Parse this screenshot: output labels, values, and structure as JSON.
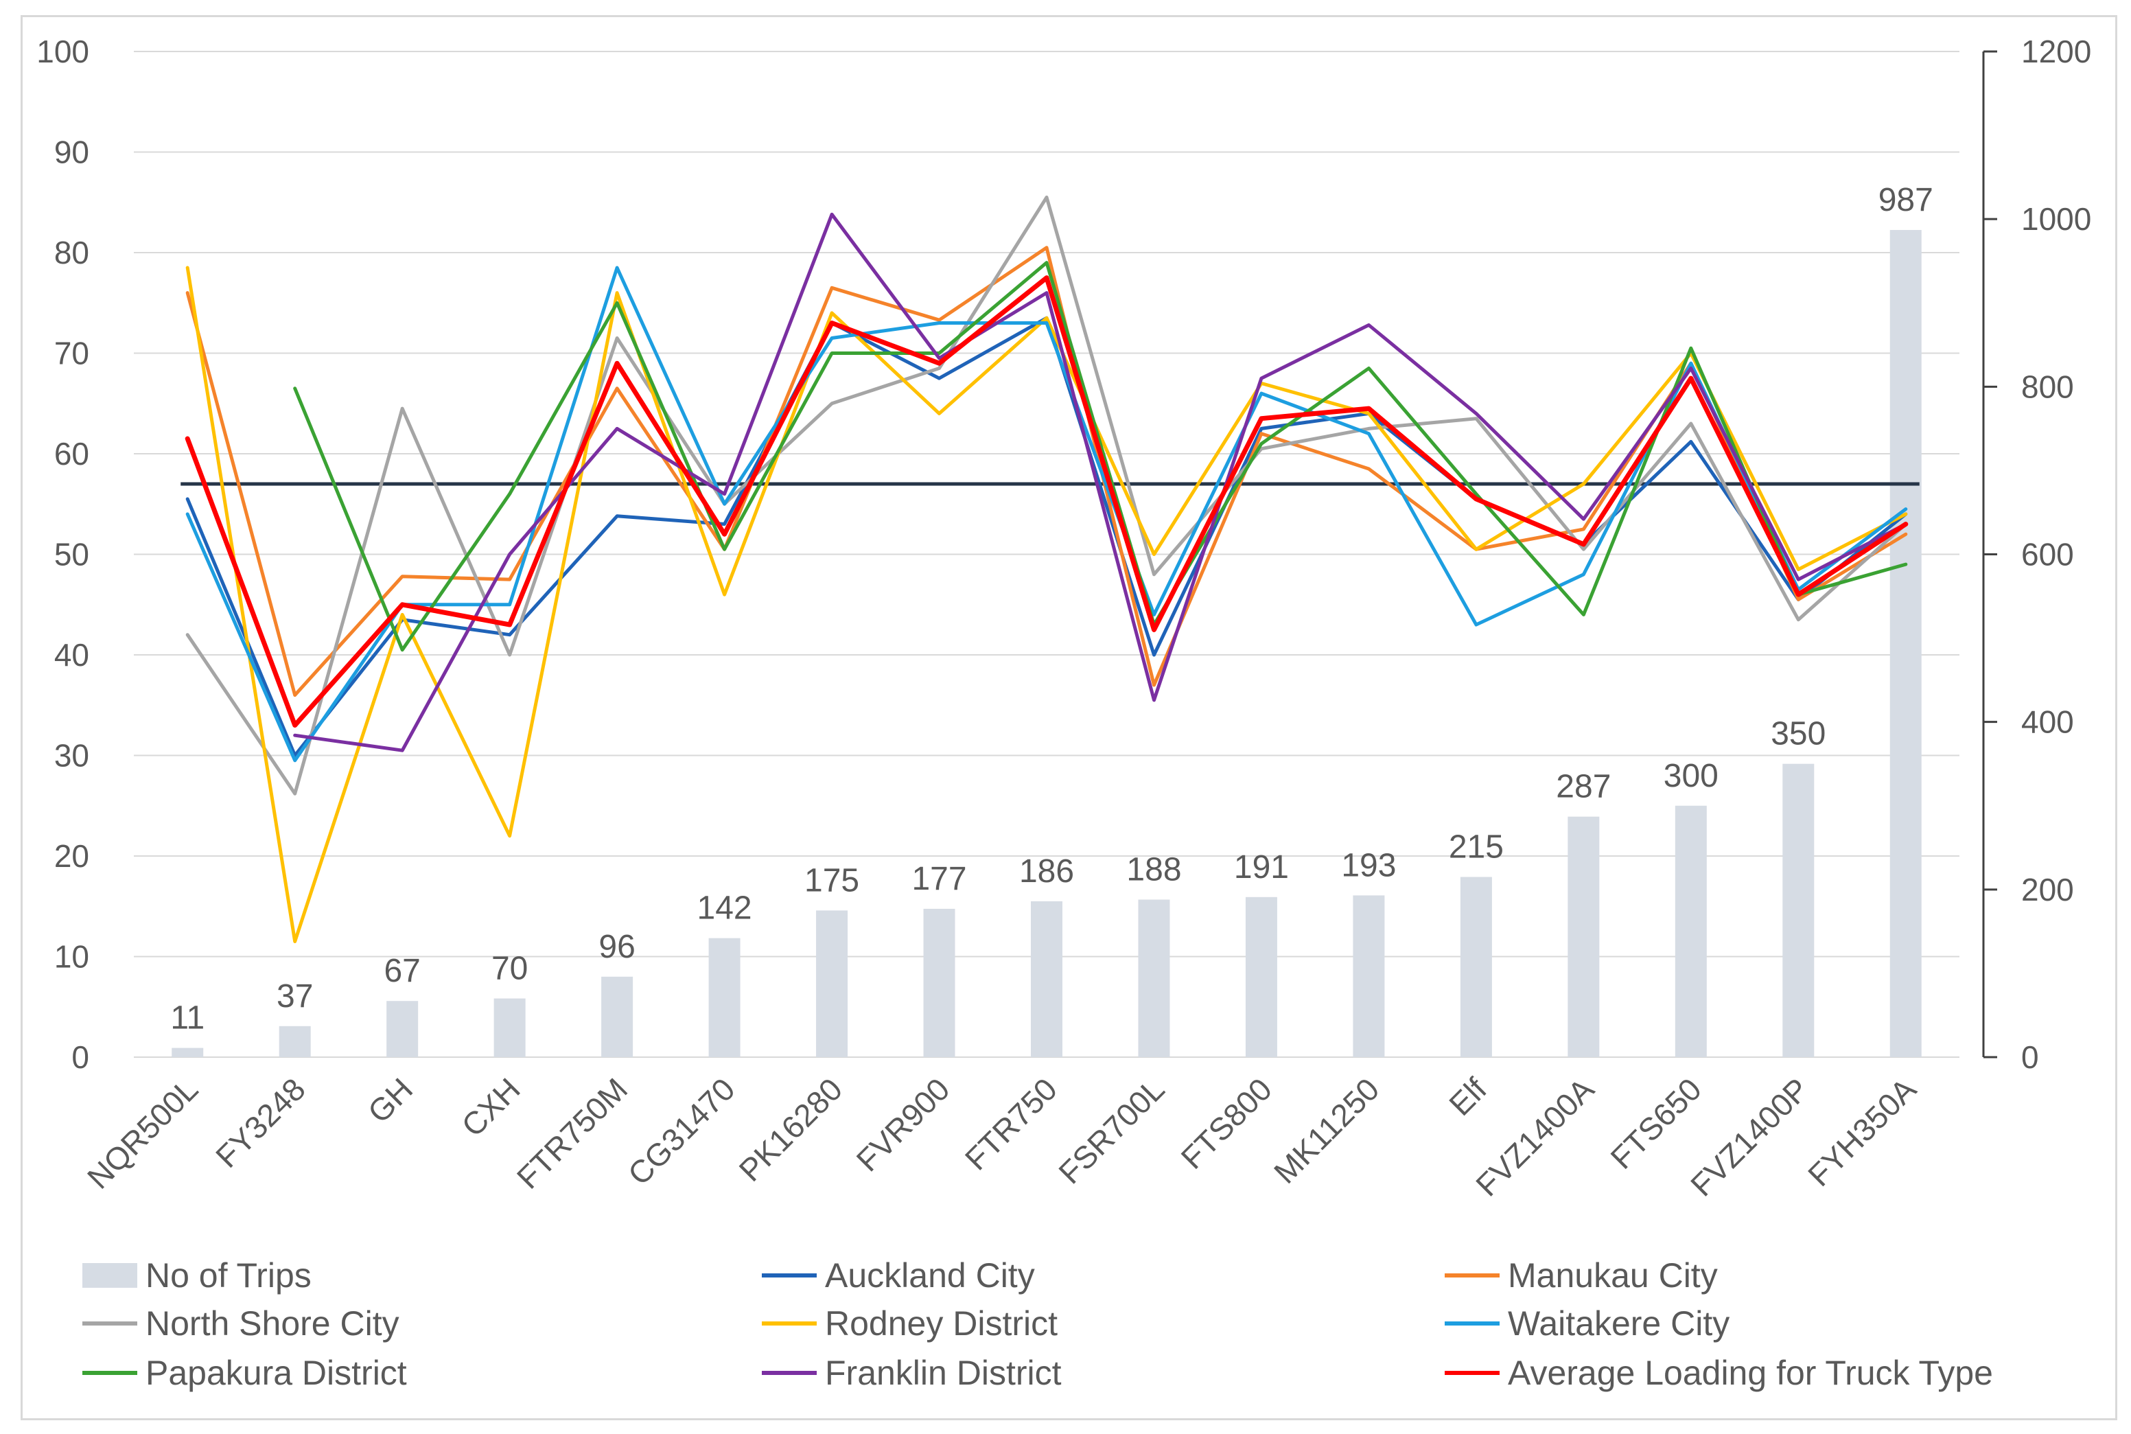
{
  "chart_data": {
    "type": "bar",
    "categories": [
      "NQR500L",
      "FY3248",
      "GH",
      "CXH",
      "FTR750M",
      "CG31470",
      "PK16280",
      "FVR900",
      "FTR750",
      "FSR700L",
      "FTS800",
      "MK11250",
      "Elf",
      "FVZ1400A",
      "FTS650",
      "FVZ1400P",
      "FYH350A"
    ],
    "left_axis": {
      "min": 0,
      "max": 100,
      "ticks": [
        "0",
        "10",
        "20",
        "30",
        "40",
        "50",
        "60",
        "70",
        "80",
        "90",
        "100"
      ]
    },
    "right_axis": {
      "min": 0,
      "max": 1200,
      "ticks": [
        "0",
        "200",
        "400",
        "600",
        "800",
        "1000",
        "1200"
      ]
    },
    "bars": {
      "name": "No of Trips",
      "axis": "right",
      "color": "#d6dce4",
      "values": [
        11,
        37,
        67,
        70,
        96,
        142,
        175,
        177,
        186,
        188,
        191,
        193,
        215,
        287,
        300,
        350,
        987
      ]
    },
    "reference_line": {
      "value": 57,
      "axis": "left",
      "color": "#263548"
    },
    "series": [
      {
        "name": "Auckland City",
        "color": "#1f63b8",
        "values": [
          55.5,
          30,
          43.5,
          42,
          53.8,
          53,
          73,
          67.5,
          73.5,
          40,
          62.5,
          64,
          55.5,
          51,
          61.2,
          45.5,
          54
        ]
      },
      {
        "name": "Manukau City",
        "color": "#f5832a",
        "values": [
          76,
          36,
          47.8,
          47.5,
          66.5,
          50.5,
          76.5,
          73.3,
          80.5,
          37,
          62,
          58.5,
          50.5,
          52.5,
          69,
          45.5,
          52
        ]
      },
      {
        "name": "North Shore City",
        "color": "#a5a5a5",
        "values": [
          42,
          26.2,
          64.5,
          40,
          71.5,
          55,
          65,
          68.5,
          85.5,
          48,
          60.5,
          62.5,
          63.5,
          50.5,
          63,
          43.5,
          53
        ]
      },
      {
        "name": "Rodney District",
        "color": "#ffc000",
        "values": [
          78.5,
          11.5,
          44,
          22,
          76,
          46,
          74,
          64,
          73.5,
          50,
          67,
          64,
          50.5,
          57,
          70,
          48.5,
          54
        ]
      },
      {
        "name": "Waitakere City",
        "color": "#1d9ee0",
        "values": [
          54,
          29.5,
          45,
          45,
          78.5,
          55,
          71.5,
          73,
          73,
          44,
          66,
          62,
          43,
          48,
          69,
          46.5,
          54.5
        ]
      },
      {
        "name": "Papakura District",
        "color": "#3aa233",
        "values": [
          null,
          66.5,
          40.5,
          56,
          75,
          50.5,
          70,
          70,
          79,
          43,
          61,
          68.5,
          56,
          44,
          70.5,
          46,
          49
        ]
      },
      {
        "name": "Franklin District",
        "color": "#7a2fa1",
        "values": [
          null,
          32,
          30.5,
          50,
          62.5,
          56,
          83.8,
          69.5,
          76,
          35.5,
          67.5,
          72.8,
          64,
          53.5,
          68.5,
          47.5,
          53
        ]
      },
      {
        "name": "Average Loading for Truck Type",
        "color": "#ff0000",
        "values": [
          61.5,
          33,
          45,
          43,
          69,
          52,
          73,
          69,
          77.5,
          42.5,
          63.5,
          64.5,
          55.5,
          51,
          67.5,
          46,
          53
        ]
      }
    ],
    "legend": {
      "placement": "bottom",
      "entries": [
        {
          "name": "No of Trips",
          "kind": "bar",
          "color": "#d6dce4"
        },
        {
          "name": "Auckland City",
          "kind": "line",
          "color": "#1f63b8"
        },
        {
          "name": "Manukau City",
          "kind": "line",
          "color": "#f5832a"
        },
        {
          "name": "North Shore City",
          "kind": "line",
          "color": "#a5a5a5"
        },
        {
          "name": "Rodney District",
          "kind": "line",
          "color": "#ffc000"
        },
        {
          "name": "Waitakere City",
          "kind": "line",
          "color": "#1d9ee0"
        },
        {
          "name": "Papakura District",
          "kind": "line",
          "color": "#3aa233"
        },
        {
          "name": "Franklin District",
          "kind": "line",
          "color": "#7a2fa1"
        },
        {
          "name": "Average Loading for Truck Type",
          "kind": "line",
          "color": "#ff0000"
        }
      ]
    },
    "gridlines": true,
    "title": "",
    "xlabel": "",
    "ylabel": ""
  }
}
